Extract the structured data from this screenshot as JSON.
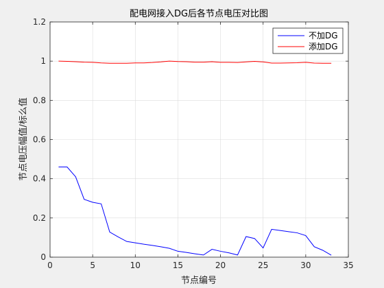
{
  "chart_data": {
    "type": "line",
    "title": "配电网接入DG后各节点电压对比图",
    "xlabel": "节点编号",
    "ylabel": "节点电压幅值/标么值",
    "xlim": [
      0,
      35
    ],
    "ylim": [
      0,
      1.2
    ],
    "xticks": [
      0,
      5,
      10,
      15,
      20,
      25,
      30,
      35
    ],
    "yticks": [
      0,
      0.2,
      0.4,
      0.6,
      0.8,
      1,
      1.2
    ],
    "xtick_labels": [
      "0",
      "5",
      "10",
      "15",
      "20",
      "25",
      "30",
      "35"
    ],
    "ytick_labels": [
      "0",
      "0.2",
      "0.4",
      "0.6",
      "0.8",
      "1",
      "1.2"
    ],
    "grid": true,
    "legend_position": "top-right",
    "x": [
      1,
      2,
      3,
      4,
      5,
      6,
      7,
      8,
      9,
      10,
      11,
      12,
      13,
      14,
      15,
      16,
      17,
      18,
      19,
      20,
      21,
      22,
      23,
      24,
      25,
      26,
      27,
      28,
      29,
      30,
      31,
      32,
      33
    ],
    "series": [
      {
        "name": "不加DG",
        "color": "#0000ff",
        "values": [
          0.46,
          0.46,
          0.41,
          0.295,
          0.28,
          0.272,
          0.128,
          0.103,
          0.08,
          0.073,
          0.066,
          0.06,
          0.053,
          0.045,
          0.03,
          0.024,
          0.017,
          0.011,
          0.04,
          0.03,
          0.022,
          0.011,
          0.105,
          0.095,
          0.047,
          0.142,
          0.136,
          0.13,
          0.124,
          0.11,
          0.053,
          0.035,
          0.01
        ]
      },
      {
        "name": "添加DG",
        "color": "#ff0000",
        "values": [
          1.0,
          0.999,
          0.997,
          0.995,
          0.994,
          0.991,
          0.989,
          0.989,
          0.989,
          0.991,
          0.991,
          0.993,
          0.996,
          1.0,
          0.998,
          0.997,
          0.995,
          0.995,
          0.997,
          0.994,
          0.994,
          0.993,
          0.996,
          0.999,
          0.996,
          0.99,
          0.99,
          0.991,
          0.992,
          0.994,
          0.99,
          0.989,
          0.989
        ]
      }
    ]
  }
}
